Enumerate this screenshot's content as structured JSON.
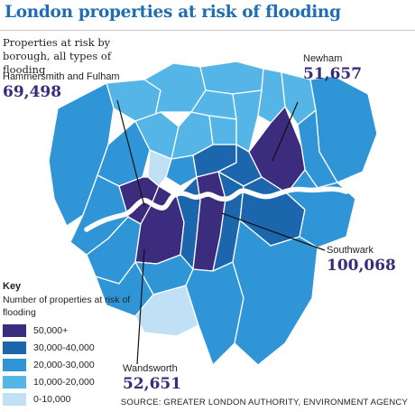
{
  "title": "London properties at risk of flooding",
  "subtitle": "Properties at risk by borough, all types of flooding",
  "callouts": [
    {
      "name": "Hammersmith and Fulham",
      "value": "69,498"
    },
    {
      "name": "Newham",
      "value": "51,657"
    },
    {
      "name": "Southwark",
      "value": "100,068"
    },
    {
      "name": "Wandsworth",
      "value": "52,651"
    }
  ],
  "key": {
    "title": "Key",
    "subtitle": "Number of properties at risk of flooding",
    "classes": [
      {
        "label": "50,000+",
        "color": "#3b2c7e"
      },
      {
        "label": "30,000-40,000",
        "color": "#1b66ad"
      },
      {
        "label": "20,000-30,000",
        "color": "#2f95d6"
      },
      {
        "label": "10,000-20,000",
        "color": "#54b5e6"
      },
      {
        "label": "0-10,000",
        "color": "#bfe0f5"
      }
    ]
  },
  "colors": {
    "border": "#ffffff",
    "river": "#ffffff",
    "leader": "#111111",
    "title": "#1f6db3"
  },
  "source": "SOURCE: GREATER LONDON AUTHORITY, ENVIRONMENT AGENCY"
}
